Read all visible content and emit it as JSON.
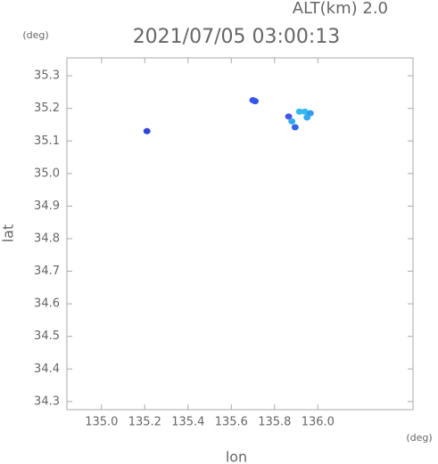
{
  "chart_data": {
    "type": "scatter",
    "title": "2021/07/05 03:00:13",
    "subtitle": "ALT(km) 2.0",
    "x_label": "lon",
    "y_label": "lat",
    "x_unit": "(deg)",
    "y_unit": "(deg)",
    "x": [
      135.21,
      135.7,
      135.71,
      135.865,
      135.88,
      135.895,
      135.915,
      135.94,
      135.965,
      135.95
    ],
    "values": [
      35.13,
      35.225,
      35.222,
      35.175,
      35.16,
      35.142,
      35.19,
      35.19,
      35.185,
      35.172
    ],
    "colors": [
      "#3344dd",
      "#3355ee",
      "#3355ee",
      "#4455ee",
      "#33aaee",
      "#3366ee",
      "#33bbee",
      "#33bbee",
      "#3399ee",
      "#33aaee"
    ],
    "xlim": [
      134.84,
      136.44
    ],
    "ylim": [
      34.275,
      35.355
    ],
    "xticks": [
      {
        "value": 135,
        "label": "135.0"
      },
      135.2,
      135.4,
      135.6,
      135.8,
      {
        "value": 136,
        "label": "136.0"
      }
    ],
    "yticks": [
      34.3,
      34.4,
      34.5,
      34.6,
      34.7,
      34.8,
      34.9,
      {
        "value": 35,
        "label": "35.0"
      },
      35.1,
      35.2,
      35.3
    ]
  }
}
